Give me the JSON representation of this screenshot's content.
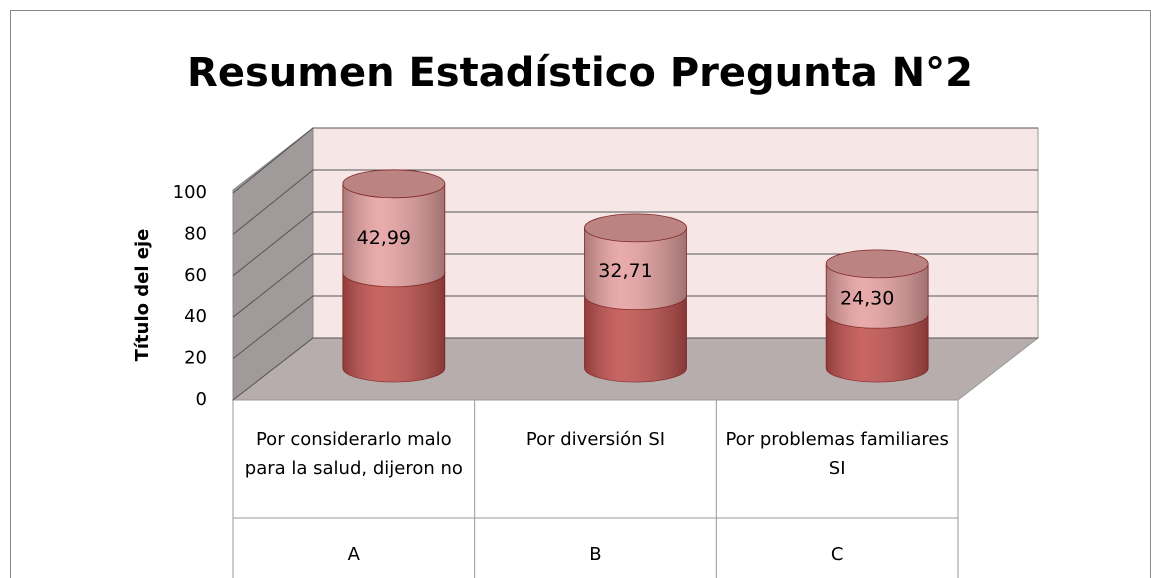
{
  "chart_data": {
    "type": "bar3d-cylinder-stacked",
    "title": "Resumen Estadístico Pregunta N°2",
    "y_axis_label": "Título del eje",
    "categories": [
      [
        "Por considerarlo malo para la salud, dijeron no",
        "A"
      ],
      [
        "Por diversión SI",
        "B"
      ],
      [
        "Por problemas familiares SI",
        "C"
      ]
    ],
    "series": [
      {
        "color": "#c0504d",
        "values": [
          46,
          35,
          26
        ]
      },
      {
        "color": "#e6a0a0",
        "values": [
          42.99,
          32.71,
          24.3
        ],
        "value_labels": [
          "42,99",
          "32,71",
          "24,30"
        ]
      }
    ],
    "ylim": [
      0,
      100
    ],
    "yticks": [
      0,
      20,
      40,
      60,
      80,
      100
    ],
    "grid": true
  }
}
